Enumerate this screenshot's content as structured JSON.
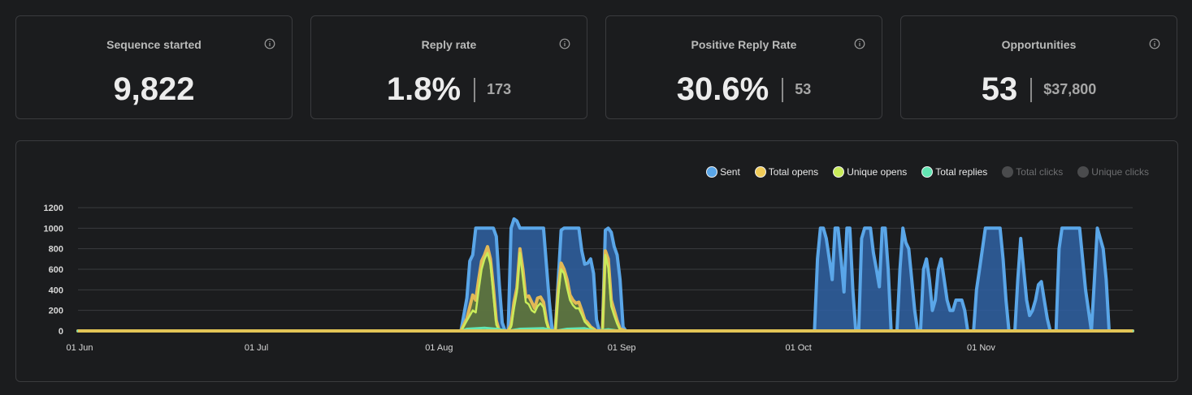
{
  "cards": [
    {
      "title": "Sequence started",
      "value": "9,822",
      "secondary": ""
    },
    {
      "title": "Reply rate",
      "value": "1.8%",
      "secondary": "173"
    },
    {
      "title": "Positive Reply Rate",
      "value": "30.6%",
      "secondary": "53"
    },
    {
      "title": "Opportunities",
      "value": "53",
      "secondary": "$37,800"
    }
  ],
  "legend": [
    {
      "label": "Sent",
      "color": "#5aa6e8",
      "active": true
    },
    {
      "label": "Total opens",
      "color": "#f0cb58",
      "active": true
    },
    {
      "label": "Unique opens",
      "color": "#c9ec5a",
      "active": true
    },
    {
      "label": "Total replies",
      "color": "#63e6b3",
      "active": true
    },
    {
      "label": "Total clicks",
      "color": "#4a4b4d",
      "active": false
    },
    {
      "label": "Unique clicks",
      "color": "#4a4b4d",
      "active": false
    }
  ],
  "chart_data": {
    "type": "area",
    "title": "",
    "xlabel": "",
    "ylabel": "",
    "ylim": [
      0,
      1200
    ],
    "yticks": [
      0,
      200,
      400,
      600,
      800,
      1000,
      1200
    ],
    "xticks": [
      {
        "day": 0,
        "label": "01 Jun"
      },
      {
        "day": 30,
        "label": "01 Jul"
      },
      {
        "day": 61,
        "label": "01 Aug"
      },
      {
        "day": 92,
        "label": "01 Sep"
      },
      {
        "day": 122,
        "label": "01 Oct"
      },
      {
        "day": 153,
        "label": "01 Nov"
      }
    ],
    "x_range_days": [
      0,
      179
    ],
    "series": [
      {
        "name": "Sent",
        "color": "#5aa6e8",
        "fill": "#2f62a3",
        "points": [
          [
            0,
            0
          ],
          [
            65,
            0
          ],
          [
            66,
            320
          ],
          [
            66.5,
            680
          ],
          [
            67,
            740
          ],
          [
            67.5,
            1000
          ],
          [
            69,
            1000
          ],
          [
            70.5,
            1000
          ],
          [
            71,
            920
          ],
          [
            71.5,
            450
          ],
          [
            72,
            80
          ],
          [
            72.5,
            0
          ],
          [
            73,
            0
          ],
          [
            73.5,
            1000
          ],
          [
            74,
            1090
          ],
          [
            74.5,
            1070
          ],
          [
            75,
            1000
          ],
          [
            79,
            1000
          ],
          [
            80,
            280
          ],
          [
            80.5,
            0
          ],
          [
            81,
            0
          ],
          [
            82,
            980
          ],
          [
            82.5,
            1000
          ],
          [
            85,
            1000
          ],
          [
            85.5,
            780
          ],
          [
            86,
            650
          ],
          [
            86.5,
            660
          ],
          [
            87,
            700
          ],
          [
            87.5,
            560
          ],
          [
            88,
            110
          ],
          [
            88.5,
            0
          ],
          [
            89,
            0
          ],
          [
            89.5,
            980
          ],
          [
            90,
            1000
          ],
          [
            90.5,
            960
          ],
          [
            91,
            820
          ],
          [
            91.5,
            740
          ],
          [
            92,
            500
          ],
          [
            92.5,
            40
          ],
          [
            93,
            0
          ],
          [
            125,
            0
          ],
          [
            125.5,
            700
          ],
          [
            126,
            1000
          ],
          [
            126.5,
            1000
          ],
          [
            127,
            900
          ],
          [
            127.5,
            700
          ],
          [
            128,
            500
          ],
          [
            128.5,
            1000
          ],
          [
            129,
            1000
          ],
          [
            129.5,
            700
          ],
          [
            130,
            380
          ],
          [
            130.5,
            1000
          ],
          [
            131,
            1000
          ],
          [
            131.5,
            400
          ],
          [
            132,
            0
          ],
          [
            132.5,
            0
          ],
          [
            133,
            900
          ],
          [
            133.5,
            1000
          ],
          [
            134.5,
            1000
          ],
          [
            135,
            760
          ],
          [
            135.5,
            600
          ],
          [
            136,
            430
          ],
          [
            136.5,
            1000
          ],
          [
            137,
            1000
          ],
          [
            137.5,
            600
          ],
          [
            138,
            0
          ],
          [
            139,
            0
          ],
          [
            139.5,
            600
          ],
          [
            140,
            1000
          ],
          [
            140.5,
            860
          ],
          [
            141,
            800
          ],
          [
            141.5,
            500
          ],
          [
            142,
            200
          ],
          [
            142.5,
            0
          ],
          [
            143,
            0
          ],
          [
            143.5,
            600
          ],
          [
            144,
            700
          ],
          [
            144.5,
            500
          ],
          [
            145,
            200
          ],
          [
            145.5,
            300
          ],
          [
            146,
            600
          ],
          [
            146.5,
            700
          ],
          [
            147,
            500
          ],
          [
            147.5,
            300
          ],
          [
            148,
            200
          ],
          [
            148.5,
            200
          ],
          [
            149,
            300
          ],
          [
            149.5,
            300
          ],
          [
            150,
            300
          ],
          [
            150.5,
            200
          ],
          [
            151,
            0
          ],
          [
            152,
            0
          ],
          [
            152.5,
            400
          ],
          [
            153,
            600
          ],
          [
            153.5,
            800
          ],
          [
            154,
            1000
          ],
          [
            156.5,
            1000
          ],
          [
            157,
            700
          ],
          [
            157.5,
            300
          ],
          [
            158,
            0
          ],
          [
            159,
            0
          ],
          [
            159.5,
            500
          ],
          [
            160,
            900
          ],
          [
            160.5,
            600
          ],
          [
            161,
            300
          ],
          [
            161.5,
            150
          ],
          [
            162,
            200
          ],
          [
            162.5,
            300
          ],
          [
            163,
            450
          ],
          [
            163.5,
            480
          ],
          [
            164,
            300
          ],
          [
            164.5,
            120
          ],
          [
            165,
            0
          ],
          [
            166,
            0
          ],
          [
            166.5,
            800
          ],
          [
            167,
            1000
          ],
          [
            170,
            1000
          ],
          [
            170.5,
            700
          ],
          [
            171,
            400
          ],
          [
            171.5,
            200
          ],
          [
            172,
            0
          ],
          [
            172.5,
            500
          ],
          [
            173,
            1000
          ],
          [
            173.5,
            900
          ],
          [
            174,
            800
          ],
          [
            174.5,
            500
          ],
          [
            175,
            0
          ],
          [
            179,
            0
          ]
        ]
      },
      {
        "name": "Total opens",
        "color": "#e2b856",
        "fill": "#66782c",
        "points": [
          [
            0,
            0
          ],
          [
            65,
            0
          ],
          [
            66,
            120
          ],
          [
            67,
            350
          ],
          [
            67.5,
            300
          ],
          [
            68,
            500
          ],
          [
            68.5,
            680
          ],
          [
            69,
            740
          ],
          [
            69.5,
            820
          ],
          [
            70,
            700
          ],
          [
            70.5,
            420
          ],
          [
            71,
            100
          ],
          [
            71.5,
            0
          ],
          [
            73,
            0
          ],
          [
            73.5,
            60
          ],
          [
            74,
            280
          ],
          [
            74.5,
            420
          ],
          [
            75,
            800
          ],
          [
            75.5,
            600
          ],
          [
            76,
            330
          ],
          [
            76.5,
            340
          ],
          [
            77,
            280
          ],
          [
            77.5,
            220
          ],
          [
            78,
            320
          ],
          [
            78.5,
            330
          ],
          [
            79,
            280
          ],
          [
            79.5,
            100
          ],
          [
            80,
            0
          ],
          [
            81,
            0
          ],
          [
            81.5,
            400
          ],
          [
            82,
            660
          ],
          [
            82.5,
            600
          ],
          [
            83,
            500
          ],
          [
            83.5,
            350
          ],
          [
            84,
            300
          ],
          [
            84.5,
            270
          ],
          [
            85,
            280
          ],
          [
            85.5,
            200
          ],
          [
            86,
            110
          ],
          [
            86.5,
            80
          ],
          [
            87,
            40
          ],
          [
            88,
            0
          ],
          [
            89,
            0
          ],
          [
            89.5,
            780
          ],
          [
            90,
            700
          ],
          [
            90.5,
            300
          ],
          [
            91,
            200
          ],
          [
            91.5,
            100
          ],
          [
            92,
            20
          ],
          [
            93,
            0
          ],
          [
            179,
            0
          ]
        ]
      },
      {
        "name": "Unique opens",
        "color": "#c9ec5a",
        "fill": "none",
        "points": [
          [
            0,
            0
          ],
          [
            65,
            0
          ],
          [
            66,
            100
          ],
          [
            67,
            200
          ],
          [
            67.5,
            180
          ],
          [
            68,
            400
          ],
          [
            68.5,
            600
          ],
          [
            69,
            700
          ],
          [
            69.5,
            760
          ],
          [
            70,
            650
          ],
          [
            70.5,
            350
          ],
          [
            71,
            60
          ],
          [
            71.5,
            0
          ],
          [
            73,
            0
          ],
          [
            73.5,
            40
          ],
          [
            74,
            220
          ],
          [
            74.5,
            380
          ],
          [
            75,
            760
          ],
          [
            75.5,
            520
          ],
          [
            76,
            280
          ],
          [
            76.5,
            260
          ],
          [
            77,
            200
          ],
          [
            77.5,
            180
          ],
          [
            78,
            240
          ],
          [
            78.5,
            270
          ],
          [
            79,
            230
          ],
          [
            79.5,
            80
          ],
          [
            80,
            0
          ],
          [
            81,
            0
          ],
          [
            81.5,
            340
          ],
          [
            82,
            600
          ],
          [
            82.5,
            560
          ],
          [
            83,
            420
          ],
          [
            83.5,
            300
          ],
          [
            84,
            250
          ],
          [
            84.5,
            220
          ],
          [
            85,
            220
          ],
          [
            85.5,
            160
          ],
          [
            86,
            90
          ],
          [
            86.5,
            60
          ],
          [
            87,
            30
          ],
          [
            88,
            0
          ],
          [
            89,
            0
          ],
          [
            89.5,
            740
          ],
          [
            90,
            620
          ],
          [
            90.5,
            240
          ],
          [
            91,
            150
          ],
          [
            91.5,
            70
          ],
          [
            92,
            10
          ],
          [
            93,
            0
          ],
          [
            179,
            0
          ]
        ]
      },
      {
        "name": "Total replies",
        "color": "#63e6b3",
        "fill": "none",
        "points": [
          [
            0,
            0
          ],
          [
            65,
            0
          ],
          [
            66,
            20
          ],
          [
            69,
            30
          ],
          [
            71,
            20
          ],
          [
            73,
            0
          ],
          [
            75,
            20
          ],
          [
            79,
            25
          ],
          [
            81,
            0
          ],
          [
            83,
            20
          ],
          [
            86,
            25
          ],
          [
            88,
            0
          ],
          [
            90,
            15
          ],
          [
            92,
            0
          ],
          [
            179,
            0
          ]
        ]
      }
    ]
  }
}
